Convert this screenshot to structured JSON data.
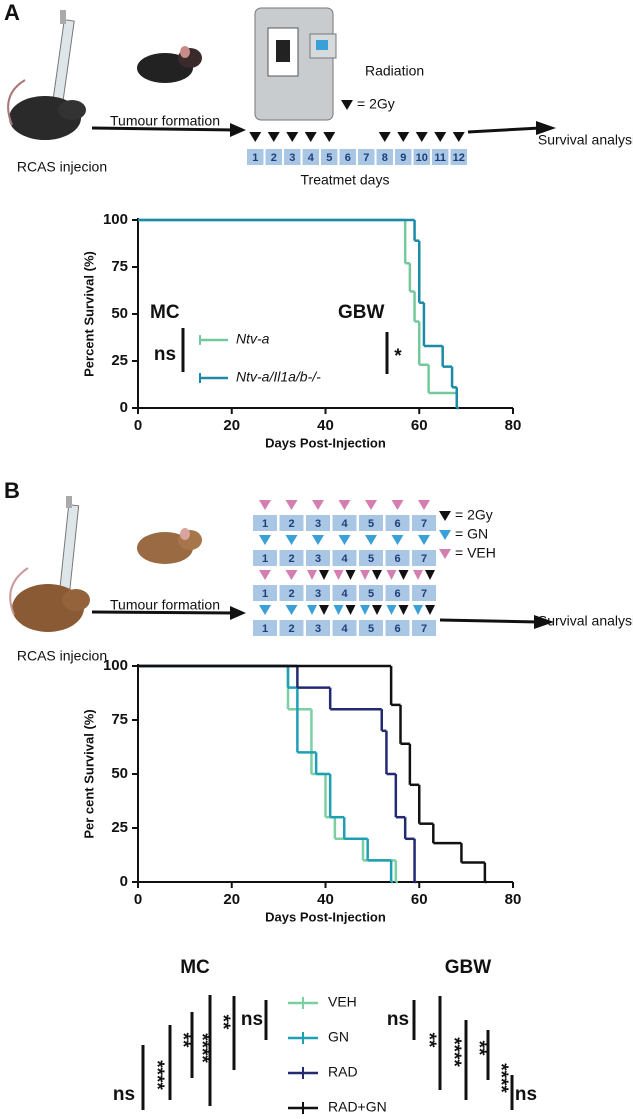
{
  "panel_a": {
    "label": "A",
    "injection": "RCAS injecion",
    "arrow": "Tumour formation",
    "radiation": "Radiation",
    "legend_2gy": "= 2Gy",
    "days": [
      1,
      2,
      3,
      4,
      5,
      6,
      7,
      8,
      9,
      10,
      11,
      12
    ],
    "days_caption": "Treatmet days",
    "outcome": "Survival analysis"
  },
  "panel_b": {
    "label": "B",
    "injection": "RCAS injecion",
    "arrow": "Tumour formation",
    "legend": [
      "= 2Gy",
      "= GN",
      "= VEH"
    ],
    "days": [
      1,
      2,
      3,
      4,
      5,
      6,
      7
    ],
    "outcome": "Survival analysis"
  },
  "chart_data": [
    {
      "type": "step",
      "xlabel": "Days Post-Injection",
      "ylabel": "Percent Survival (%)",
      "xlim": [
        0,
        80
      ],
      "xticks": [
        0,
        20,
        40,
        60,
        80
      ],
      "ylim": [
        0,
        100
      ],
      "yticks": [
        0,
        25,
        50,
        75,
        100
      ],
      "series": [
        {
          "name": "Ntv-a",
          "color": "#74c99c",
          "x": [
            0,
            57,
            58,
            59,
            60,
            62,
            68
          ],
          "values": [
            100,
            77,
            62,
            46,
            23,
            8,
            0
          ]
        },
        {
          "name": "Ntv-a/Il1a/b-/-",
          "color": "#1a8aa6",
          "x": [
            0,
            59,
            60,
            61,
            65,
            67,
            68
          ],
          "values": [
            100,
            89,
            56,
            33,
            22,
            11,
            0
          ]
        }
      ],
      "annotations": [
        "MC",
        "GBW",
        "ns",
        "*"
      ]
    },
    {
      "type": "step",
      "xlabel": "Days Post-Injection",
      "ylabel": "Per cent Survival (%)",
      "xlim": [
        0,
        80
      ],
      "xticks": [
        0,
        20,
        40,
        60,
        80
      ],
      "ylim": [
        0,
        100
      ],
      "yticks": [
        0,
        25,
        50,
        75,
        100
      ],
      "series": [
        {
          "name": "VEH",
          "color": "#7ccfa2",
          "x": [
            0,
            32,
            37,
            40,
            42,
            48,
            55
          ],
          "values": [
            100,
            80,
            50,
            30,
            20,
            10,
            0
          ]
        },
        {
          "name": "GN",
          "color": "#1e9fb4",
          "x": [
            0,
            32,
            34,
            38,
            41,
            44,
            49,
            54
          ],
          "values": [
            100,
            90,
            60,
            50,
            30,
            20,
            10,
            0
          ]
        },
        {
          "name": "RAD",
          "color": "#232a72",
          "x": [
            0,
            34,
            41,
            52,
            53,
            55,
            57,
            59
          ],
          "values": [
            100,
            90,
            80,
            70,
            50,
            30,
            20,
            0
          ]
        },
        {
          "name": "RAD+GN",
          "color": "#111111",
          "x": [
            0,
            54,
            56,
            58,
            60,
            63,
            69,
            74
          ],
          "values": [
            100,
            82,
            64,
            45,
            27,
            18,
            9,
            0
          ]
        }
      ],
      "annotations": [
        "MC",
        "GBW",
        "ns",
        "****",
        "**",
        "****",
        "**",
        "ns",
        "ns",
        "**",
        "****",
        "**",
        "****",
        "ns"
      ]
    }
  ]
}
